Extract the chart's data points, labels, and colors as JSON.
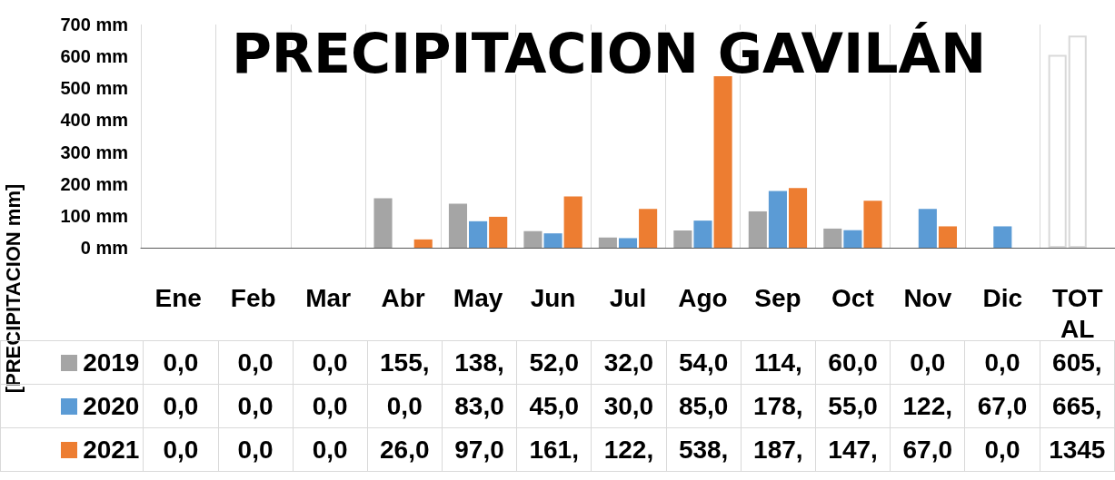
{
  "chart_data": {
    "type": "bar",
    "title": "PRECIPITACION GAVILÁN",
    "ylabel": "[PRECIPITACION mm]",
    "categories": [
      "Ene",
      "Feb",
      "Mar",
      "Abr",
      "May",
      "Jun",
      "Jul",
      "Ago",
      "Sep",
      "Oct",
      "Nov",
      "Dic",
      "TOTAL"
    ],
    "series": [
      {
        "name": "2019",
        "color": "#a5a5a5",
        "colors": [
          "#a5a5a5",
          "#a5a5a5",
          "#a5a5a5",
          "#a5a5a5",
          "#a5a5a5",
          "#a5a5a5",
          "#a5a5a5",
          "#a5a5a5",
          "#a5a5a5",
          "#a5a5a5",
          "#a5a5a5",
          "#a5a5a5",
          "#ffffff"
        ],
        "values": [
          0,
          0,
          0,
          155,
          138,
          52,
          32,
          54,
          114,
          60,
          0,
          0,
          605
        ],
        "value_labels": [
          "0,0",
          "0,0",
          "0,0",
          "155,",
          "138,",
          "52,0",
          "32,0",
          "54,0",
          "114,",
          "60,0",
          "0,0",
          "0,0",
          "605,"
        ]
      },
      {
        "name": "2020",
        "color": "#5b9bd5",
        "colors": [
          "#5b9bd5",
          "#5b9bd5",
          "#5b9bd5",
          "#5b9bd5",
          "#5b9bd5",
          "#5b9bd5",
          "#5b9bd5",
          "#5b9bd5",
          "#5b9bd5",
          "#5b9bd5",
          "#5b9bd5",
          "#5b9bd5",
          "#ffffff"
        ],
        "values": [
          0,
          0,
          0,
          0,
          83,
          45,
          30,
          85,
          178,
          55,
          122,
          67,
          665
        ],
        "value_labels": [
          "0,0",
          "0,0",
          "0,0",
          "0,0",
          "83,0",
          "45,0",
          "30,0",
          "85,0",
          "178,",
          "55,0",
          "122,",
          "67,0",
          "665,"
        ]
      },
      {
        "name": "2021",
        "color": "#ed7d31",
        "values": [
          0,
          0,
          0,
          26,
          97,
          161,
          122,
          538,
          187,
          147,
          67,
          0,
          null
        ],
        "value_labels": [
          "0,0",
          "0,0",
          "0,0",
          "26,0",
          "97,0",
          "161,",
          "122,",
          "538,",
          "187,",
          "147,",
          "67,0",
          "0,0",
          "1345"
        ]
      }
    ],
    "ylim": [
      0,
      700
    ],
    "yticks": [
      {
        "value": 0,
        "label": "0 mm"
      },
      {
        "value": 100,
        "label": "100 mm"
      },
      {
        "value": 200,
        "label": "200 mm"
      },
      {
        "value": 300,
        "label": "300 mm"
      },
      {
        "value": 400,
        "label": "400 mm"
      },
      {
        "value": 500,
        "label": "500 mm"
      },
      {
        "value": 600,
        "label": "600 mm"
      },
      {
        "value": 700,
        "label": "700 mm"
      }
    ],
    "grid": "x",
    "legend": "bottom left"
  }
}
